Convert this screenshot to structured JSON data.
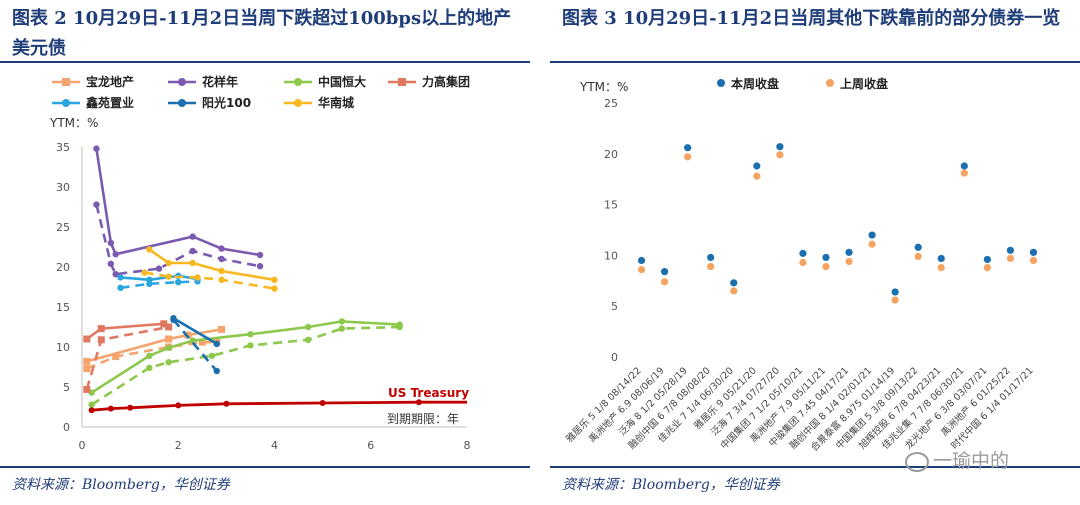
{
  "left": {
    "title": "图表 2 10月29日-11月2日当周下跌超过100bps以上的地产美元债",
    "source": "资料来源：Bloomberg，华创证券"
  },
  "right": {
    "title": "图表 3 10月29日-11月2日当周其他下跌靠前的部分债券一览",
    "source": "资料来源：Bloomberg，华创证券"
  },
  "watermark": "一瑜中的",
  "colors": {
    "title": "#1f3d78",
    "dark_blue": "#1a6faf",
    "orange": "#f4a460"
  },
  "chart_data": [
    {
      "type": "line",
      "ylabel": "YTM：%",
      "xlabel": "到期期限：年",
      "xlim": [
        0,
        8
      ],
      "ylim": [
        0,
        35
      ],
      "xticks": [
        0,
        2,
        4,
        6,
        8
      ],
      "yticks": [
        0,
        5,
        10,
        15,
        20,
        25,
        30,
        35
      ],
      "legend_order": [
        "宝龙地产",
        "花样年",
        "中国恒大",
        "力高集团",
        "鑫苑置业",
        "阳光100",
        "华南城"
      ],
      "series": [
        {
          "name": "宝龙地产",
          "color": "#f4a46c",
          "marker": "square",
          "current": [
            [
              0.1,
              8.2
            ],
            [
              1.8,
              11
            ],
            [
              2.2,
              11.5
            ],
            [
              2.9,
              12.2
            ]
          ],
          "previous": [
            [
              0.1,
              7.3
            ],
            [
              0.7,
              8.8
            ],
            [
              1.8,
              10
            ],
            [
              2.5,
              10.6
            ],
            [
              2.8,
              10.6
            ]
          ]
        },
        {
          "name": "花样年",
          "color": "#7a5bb0",
          "marker": "circle",
          "current": [
            [
              0.3,
              34.8
            ],
            [
              0.6,
              23
            ],
            [
              0.7,
              21.6
            ],
            [
              2.3,
              23.8
            ],
            [
              2.9,
              22.3
            ],
            [
              3.7,
              21.5
            ]
          ],
          "previous": [
            [
              0.3,
              27.8
            ],
            [
              0.6,
              20.4
            ],
            [
              0.7,
              19.1
            ],
            [
              1.6,
              19.8
            ],
            [
              2.3,
              22
            ],
            [
              2.9,
              21
            ],
            [
              3.7,
              20.1
            ]
          ]
        },
        {
          "name": "中国恒大",
          "color": "#8cc84b",
          "marker": "circle",
          "current": [
            [
              0.2,
              4.3
            ],
            [
              1.4,
              8.9
            ],
            [
              1.8,
              9.9
            ],
            [
              2.3,
              10.8
            ],
            [
              3.5,
              11.6
            ],
            [
              4.7,
              12.5
            ],
            [
              5.4,
              13.2
            ],
            [
              6.6,
              12.8
            ]
          ],
          "previous": [
            [
              0.2,
              2.8
            ],
            [
              1.4,
              7.4
            ],
            [
              1.8,
              8.1
            ],
            [
              2.7,
              8.9
            ],
            [
              3.5,
              10.2
            ],
            [
              4.7,
              10.9
            ],
            [
              5.4,
              12.3
            ],
            [
              6.6,
              12.5
            ]
          ]
        },
        {
          "name": "力高集团",
          "color": "#e07860",
          "marker": "square",
          "current": [
            [
              0.1,
              11
            ],
            [
              0.4,
              12.3
            ],
            [
              1.7,
              12.9
            ]
          ],
          "previous": [
            [
              0.1,
              4.7
            ],
            [
              0.4,
              10.9
            ],
            [
              1.8,
              12.5
            ]
          ]
        },
        {
          "name": "鑫苑置业",
          "color": "#29a6df",
          "marker": "circle",
          "current": [
            [
              0.8,
              18.7
            ],
            [
              1.4,
              18.4
            ],
            [
              2,
              18.9
            ],
            [
              2.4,
              18.5
            ]
          ],
          "previous": [
            [
              0.8,
              17.4
            ],
            [
              1.4,
              17.9
            ],
            [
              2,
              18.1
            ],
            [
              2.4,
              18.2
            ]
          ]
        },
        {
          "name": "阳光100",
          "color": "#1a6faf",
          "marker": "circle",
          "current": [
            [
              1.9,
              13.6
            ],
            [
              2.8,
              10.4
            ]
          ],
          "previous": [
            [
              1.9,
              13.4
            ],
            [
              2.8,
              7
            ]
          ]
        },
        {
          "name": "华南城",
          "color": "#f8b822",
          "marker": "circle",
          "current": [
            [
              1.4,
              22.2
            ],
            [
              1.8,
              20.5
            ],
            [
              2.3,
              20.5
            ],
            [
              2.9,
              19.5
            ],
            [
              4,
              18.4
            ]
          ],
          "previous": [
            [
              1.3,
              19.3
            ],
            [
              1.8,
              18.8
            ],
            [
              2.4,
              18.7
            ],
            [
              2.9,
              18.4
            ],
            [
              4,
              17.3
            ]
          ]
        }
      ],
      "benchmark": {
        "name": "US Treasury",
        "color": "#c00000",
        "points": [
          [
            0.2,
            2.1
          ],
          [
            0.6,
            2.3
          ],
          [
            1,
            2.4
          ],
          [
            2,
            2.7
          ],
          [
            3,
            2.9
          ],
          [
            5,
            3.0
          ],
          [
            7,
            3.1
          ],
          [
            8,
            3.1
          ]
        ]
      }
    },
    {
      "type": "scatter",
      "ylabel": "YTM：%",
      "ylim": [
        0,
        25
      ],
      "yticks": [
        0,
        5,
        10,
        15,
        20,
        25
      ],
      "series_names": [
        "本周收盘",
        "上周收盘"
      ],
      "series_colors": [
        "#1a6faf",
        "#f4a460"
      ],
      "categories": [
        "雅居乐 5 1/8 08/14/22",
        "禹洲地产 6.9 08/06/19",
        "泛海 8 1/2 05/28/19",
        "融创中国 6 7/8 08/08/20",
        "佳兆业 7 1/4 06/30/20",
        "雅居乐 9 05/21/20",
        "泛海 7 3/4 07/27/20",
        "中国集团 7 1/2 05/10/21",
        "禹洲地产 7.9 05/11/21",
        "中骏集团 7.45 04/17/21",
        "融创中国 8 1/4 02/01/21",
        "合景泰富 8.975 01/14/19",
        "中国集团 5 3/8 09/13/22",
        "旭辉控股 6 7/8 04/23/21",
        "佳兆业集 7 7/8 06/30/21",
        "龙光地产 6 3/8 03/07/21",
        "禹洲地产 6 01/25/22",
        "时代中国 6 1/4 01/17/21"
      ],
      "series": [
        {
          "name": "本周收盘",
          "values": [
            9.5,
            8.4,
            20.6,
            9.8,
            7.3,
            18.8,
            20.7,
            10.2,
            9.8,
            10.3,
            12,
            6.4,
            10.8,
            9.7,
            18.8,
            9.6,
            10.5,
            10.3
          ]
        },
        {
          "name": "上周收盘",
          "values": [
            8.6,
            7.4,
            19.7,
            8.9,
            6.5,
            17.8,
            19.9,
            9.3,
            8.9,
            9.4,
            11.1,
            5.6,
            9.9,
            8.8,
            18.1,
            8.8,
            9.7,
            9.5
          ]
        }
      ]
    }
  ]
}
